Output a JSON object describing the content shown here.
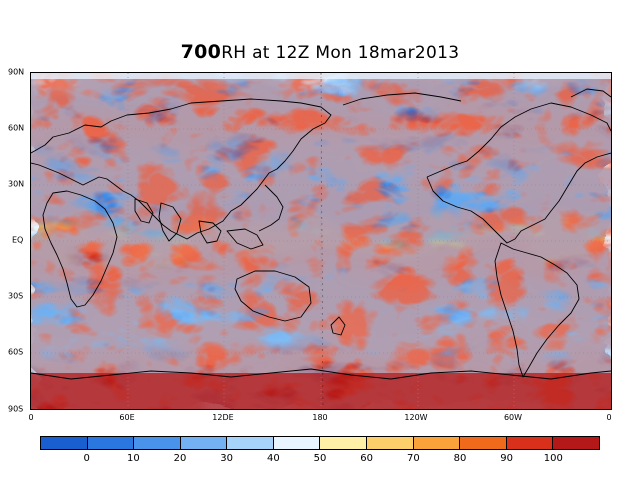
{
  "title": {
    "level": "700",
    "rest": "RH at 12Z Mon 18mar2013"
  },
  "lat_labels": [
    "90N",
    "60N",
    "30N",
    "EQ",
    "30S",
    "60S",
    "90S"
  ],
  "lon_labels": [
    "0",
    "60E",
    "12DE",
    "180",
    "120W",
    "60W",
    "0"
  ],
  "colorbar": {
    "labels": [
      "0",
      "10",
      "20",
      "30",
      "40",
      "50",
      "60",
      "70",
      "80",
      "90",
      "100"
    ],
    "colors": [
      "#1a5fd0",
      "#2a77e0",
      "#4a93ea",
      "#74b1f2",
      "#a7d2fa",
      "#e8f4ff",
      "#fff0a8",
      "#fdcf6a",
      "#f9a33a",
      "#f06a1c",
      "#d8301a",
      "#b41818"
    ]
  },
  "map": {
    "field": "relative humidity",
    "level_hpa": 700
  }
}
